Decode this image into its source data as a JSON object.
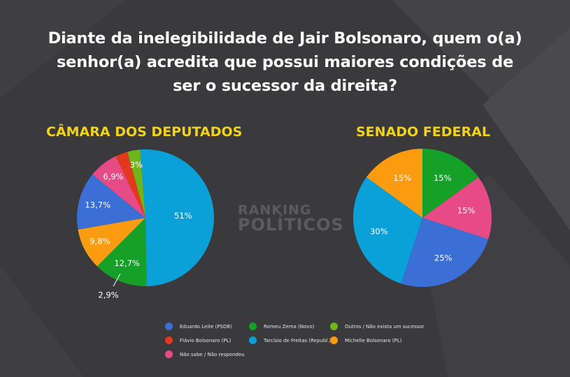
{
  "question": "Diante da inelegibilidade de Jair Bolsonaro, quem o(a) senhor(a) acredita que possui maiores condições de ser o sucessor da direita?",
  "question_lines": [
    "Diante da inelegibilidade de Jair Bolsonaro, quem o(a)",
    "senhor(a) acredita que possui maiores condições de",
    "ser o sucessor da direita?"
  ],
  "watermark": {
    "line1": "RANKING",
    "line2": "POLÍTICOS"
  },
  "colors": {
    "eduardo": "#3b6fd6",
    "flavio": "#e2391c",
    "michelle": "#fb9b10",
    "zema": "#15a02a",
    "tarcisio": "#0aa0d8",
    "nao_sabe": "#e64b85",
    "outros": "#6fb41b"
  },
  "legend": [
    {
      "key": "eduardo",
      "label": "Eduardo Leite (PSDB)"
    },
    {
      "key": "zema",
      "label": "Romeu Zema (Novo)"
    },
    {
      "key": "outros",
      "label": "Outros / Não exista um sucessor"
    },
    {
      "key": "flavio",
      "label": "Flávio Bolsonaro (PL)"
    },
    {
      "key": "tarcisio",
      "label": "Tarcísio de Freitas (Republ.)"
    },
    {
      "key": "michelle",
      "label": "Michelle Bolsonaro (PL)"
    },
    {
      "key": "nao_sabe",
      "label": "Não sabe / Não respondeu"
    }
  ],
  "chart_data": [
    {
      "type": "pie",
      "title": "CÂMARA DOS DEPUTADOS",
      "slices": [
        {
          "key": "tarcisio",
          "label": "51%",
          "value": 51
        },
        {
          "key": "zema",
          "label": "12,7%",
          "value": 12.7
        },
        {
          "key": "michelle",
          "label": "9,8%",
          "value": 9.8
        },
        {
          "key": "eduardo",
          "label": "13,7%",
          "value": 13.7
        },
        {
          "key": "nao_sabe",
          "label": "6,9%",
          "value": 6.9
        },
        {
          "key": "flavio",
          "label": "2,9%",
          "value": 2.9
        },
        {
          "key": "outros",
          "label": "3%",
          "value": 3
        }
      ]
    },
    {
      "type": "pie",
      "title": "SENADO FEDERAL",
      "slices": [
        {
          "key": "zema",
          "label": "15%",
          "value": 15
        },
        {
          "key": "nao_sabe",
          "label": "15%",
          "value": 15
        },
        {
          "key": "eduardo",
          "label": "25%",
          "value": 25
        },
        {
          "key": "tarcisio",
          "label": "30%",
          "value": 30
        },
        {
          "key": "michelle",
          "label": "15%",
          "value": 15
        }
      ]
    }
  ]
}
